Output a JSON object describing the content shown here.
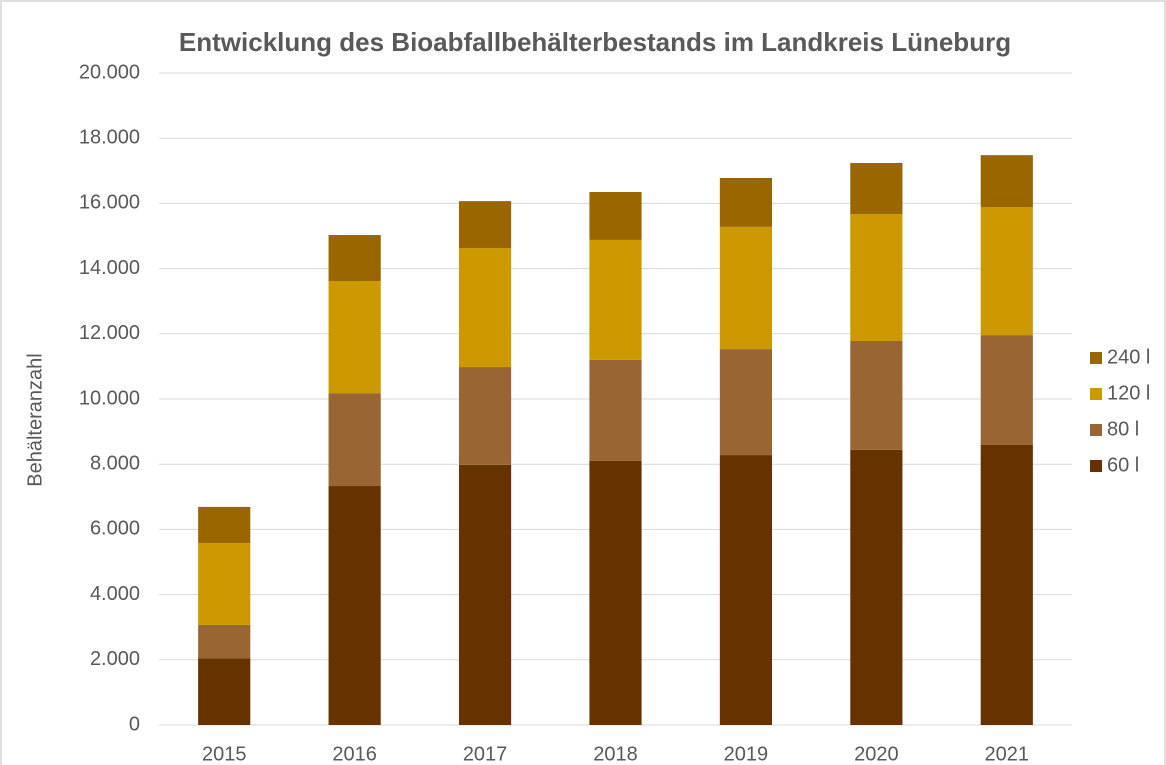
{
  "chart_data": {
    "type": "stacked_bar",
    "title": "Entwicklung des Bioabfallbehälterbestands im Landkreis Lüneburg",
    "y_label": "Behälteranzahl",
    "categories": [
      "2015",
      "2016",
      "2017",
      "2018",
      "2019",
      "2020",
      "2021"
    ],
    "series": [
      {
        "name": "60 l",
        "color": "#663300",
        "values": [
          2050,
          7330,
          7980,
          8100,
          8280,
          8440,
          8590
        ]
      },
      {
        "name": "80 l",
        "color": "#996633",
        "values": [
          1020,
          2850,
          3000,
          3100,
          3250,
          3340,
          3370
        ]
      },
      {
        "name": "120 l",
        "color": "#cc9900",
        "values": [
          2510,
          3440,
          3650,
          3680,
          3750,
          3890,
          3930
        ]
      },
      {
        "name": "240 l",
        "color": "#996600",
        "values": [
          1110,
          1410,
          1440,
          1470,
          1500,
          1570,
          1590
        ]
      }
    ],
    "ylim": [
      0,
      20000
    ],
    "yticks": [
      0,
      {
        "value": 2000,
        "label": "2.000"
      },
      {
        "value": 4000,
        "label": "4.000"
      },
      {
        "value": 6000,
        "label": "6.000"
      },
      {
        "value": 8000,
        "label": "8.000"
      },
      {
        "value": 10000,
        "label": "10.000"
      },
      {
        "value": 12000,
        "label": "12.000"
      },
      {
        "value": 14000,
        "label": "14.000"
      },
      {
        "value": 16000,
        "label": "16.000"
      },
      {
        "value": 18000,
        "label": "18.000"
      },
      {
        "value": 20000,
        "label": "20.000"
      }
    ],
    "grid": true,
    "legend": "right"
  }
}
